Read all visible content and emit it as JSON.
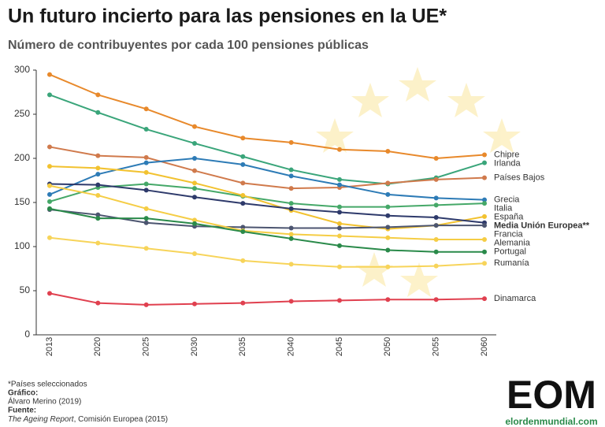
{
  "chart_data": {
    "type": "line",
    "title": "Un futuro incierto para las pensiones en la UE*",
    "subtitle": "Número de contribuyentes por cada 100 pensiones públicas",
    "categories": [
      "2013",
      "2020",
      "2025",
      "2030",
      "2035",
      "2040",
      "2045",
      "2050",
      "2055",
      "2060"
    ],
    "ylim": [
      0,
      300
    ],
    "yticks": [
      0,
      50,
      100,
      150,
      200,
      250,
      300
    ],
    "grid": false,
    "series": [
      {
        "name": "Chipre",
        "color": "#e8892b",
        "values": [
          295,
          272,
          256,
          236,
          223,
          218,
          210,
          208,
          200,
          204
        ]
      },
      {
        "name": "Irlanda",
        "color": "#3aa57a",
        "values": [
          272,
          252,
          233,
          217,
          202,
          187,
          176,
          171,
          178,
          195
        ]
      },
      {
        "name": "Países Bajos",
        "color": "#d07a4c",
        "values": [
          213,
          203,
          201,
          186,
          172,
          166,
          167,
          172,
          176,
          178
        ]
      },
      {
        "name": "Grecia",
        "color": "#2d7bb6",
        "values": [
          159,
          182,
          195,
          200,
          193,
          180,
          170,
          159,
          155,
          153
        ]
      },
      {
        "name": "Italia",
        "color": "#45a868",
        "values": [
          151,
          167,
          171,
          166,
          157,
          149,
          145,
          145,
          147,
          149
        ]
      },
      {
        "name": "España",
        "color": "#f2c230",
        "values": [
          191,
          189,
          184,
          172,
          158,
          141,
          126,
          120,
          124,
          134
        ]
      },
      {
        "name": "Media Unión Europea**",
        "color": "#2e3a6b",
        "values": [
          171,
          170,
          164,
          156,
          149,
          143,
          139,
          135,
          133,
          127
        ]
      },
      {
        "name": "Francia",
        "color": "#4c5570",
        "values": [
          142,
          136,
          127,
          123,
          122,
          121,
          121,
          122,
          124,
          124
        ]
      },
      {
        "name": "Alemania",
        "color": "#f5cd45",
        "values": [
          169,
          158,
          143,
          130,
          118,
          114,
          112,
          110,
          108,
          108
        ]
      },
      {
        "name": "Portugal",
        "color": "#2a8a4a",
        "values": [
          143,
          132,
          132,
          126,
          117,
          109,
          101,
          96,
          94,
          94
        ]
      },
      {
        "name": "Rumanía",
        "color": "#f7d45a",
        "values": [
          110,
          104,
          98,
          92,
          84,
          80,
          77,
          77,
          78,
          81
        ]
      },
      {
        "name": "Dinamarca",
        "color": "#e0404f",
        "values": [
          47,
          36,
          34,
          35,
          36,
          38,
          39,
          40,
          40,
          41
        ]
      }
    ],
    "footnote": "*Países seleccionados",
    "credit_label": "Gráfico:",
    "credit": "Álvaro Merino (2019)",
    "source_label": "Fuente:",
    "source_title": "The Ageing Report",
    "source_rest": ", Comisión Europea (2015)",
    "logo": "EOM",
    "logo_url": "elordenmundial.com"
  }
}
